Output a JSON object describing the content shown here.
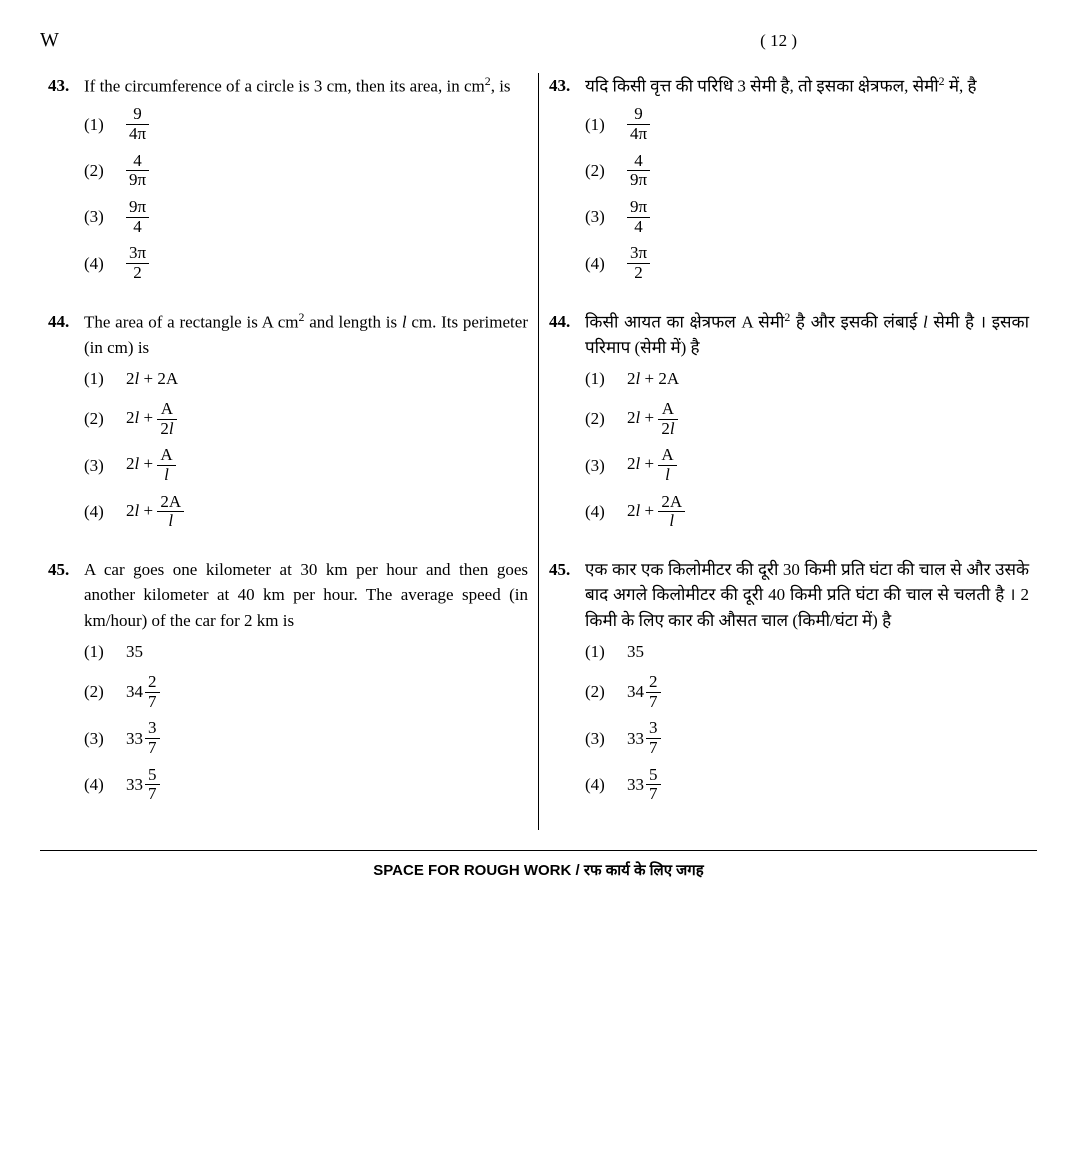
{
  "header": {
    "series": "W",
    "page": "( 12 )"
  },
  "footer": "SPACE FOR ROUGH WORK / रफ कार्य के लिए जगह",
  "q43": {
    "num": "43.",
    "en": "If the circumference of a circle is 3 cm, then its area, in cm",
    "en2": ", is",
    "hi": "यदि किसी वृत्त की परिधि 3 सेमी है, तो इसका क्षेत्रफल, सेमी",
    "hi2": " में, है",
    "opts": {
      "m1": "(1)",
      "n1": "9",
      "d1": "4π",
      "m2": "(2)",
      "n2": "4",
      "d2": "9π",
      "m3": "(3)",
      "n3": "9π",
      "d3": "4",
      "m4": "(4)",
      "n4": "3π",
      "d4": "2"
    }
  },
  "q44": {
    "num": "44.",
    "en1": "The area of a rectangle is A cm",
    "en2": " and length is ",
    "en3": " cm. Its perimeter (in cm) is",
    "hi1": "किसी आयत का क्षेत्रफल A सेमी",
    "hi2": " है और इसकी लंबाई ",
    "hi3": " सेमी है । इसका परिमाप (सेमी में) है",
    "l": "l",
    "opts": {
      "m1": "(1)",
      "t1a": "2",
      "t1b": " + 2A",
      "m2": "(2)",
      "t2a": "2",
      "t2b": " + ",
      "n2": "A",
      "d2a": "2",
      "m3": "(3)",
      "t3a": "2",
      "t3b": " + ",
      "n3": "A",
      "m4": "(4)",
      "t4a": "2",
      "t4b": " + ",
      "n4": "2A"
    }
  },
  "q45": {
    "num": "45.",
    "en": "A car goes one kilometer at 30 km per hour and then goes another kilometer at 40 km per hour. The average speed (in km/hour) of the car for 2 km is",
    "hi": "एक कार एक किलोमीटर की दूरी 30 किमी प्रति घंटा की चाल से और उसके बाद अगले किलोमीटर की दूरी 40 किमी प्रति घंटा की चाल से चलती है । 2 किमी के लिए कार की औसत चाल (किमी/घंटा में) है",
    "opts": {
      "m1": "(1)",
      "v1": "35",
      "m2": "(2)",
      "w2": "34",
      "n2": "2",
      "d2": "7",
      "m3": "(3)",
      "w3": "33",
      "n3": "3",
      "d3": "7",
      "m4": "(4)",
      "w4": "33",
      "n4": "5",
      "d4": "7"
    }
  }
}
